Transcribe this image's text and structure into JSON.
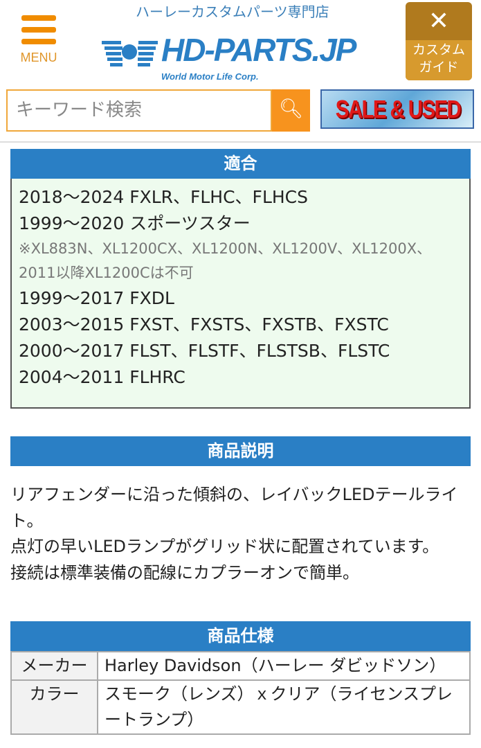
{
  "header": {
    "menu_label": "MENU",
    "tagline": "ハーレーカスタムパーツ専門店",
    "logo_text": "HD-PARTS.JP",
    "logo_sub": "World Motor Life Corp.",
    "guide_label_1": "カスタム",
    "guide_label_2": "ガイド",
    "search_placeholder": "キーワード検索",
    "sale_banner": "SALE & USED"
  },
  "fitment": {
    "title": "適合",
    "lines": [
      "2018〜2024 FXLR、FLHC、FLHCS",
      "1999〜2020 スポーツスター"
    ],
    "note": "※XL883N、XL1200CX、XL1200N、XL1200V、XL1200X、2011以降XL1200Cは不可",
    "lines2": [
      "1999〜2017 FXDL",
      "2003〜2015 FXST、FXSTS、FXSTB、FXSTC",
      "2000〜2017 FLST、FLSTF、FLSTSB、FLSTC",
      "2004〜2011 FLHRC"
    ]
  },
  "description": {
    "title": "商品説明",
    "paragraphs": [
      "リアフェンダーに沿った傾斜の、レイバックLEDテールライト。",
      "点灯の早いLEDランプがグリッド状に配置されています。",
      "接続は標準装備の配線にカプラーオンで簡単。"
    ]
  },
  "spec": {
    "title": "商品仕様",
    "rows": [
      {
        "key": "メーカー",
        "value": "Harley Davidson（ハーレー ダビッドソン）"
      },
      {
        "key": "カラー",
        "value": "スモーク（レンズ）ｘクリア（ライセンスプレートランプ）"
      }
    ]
  },
  "colors": {
    "accent_blue": "#2a7fc5",
    "orange": "#f7931e",
    "fitment_bg": "#eefbee"
  }
}
